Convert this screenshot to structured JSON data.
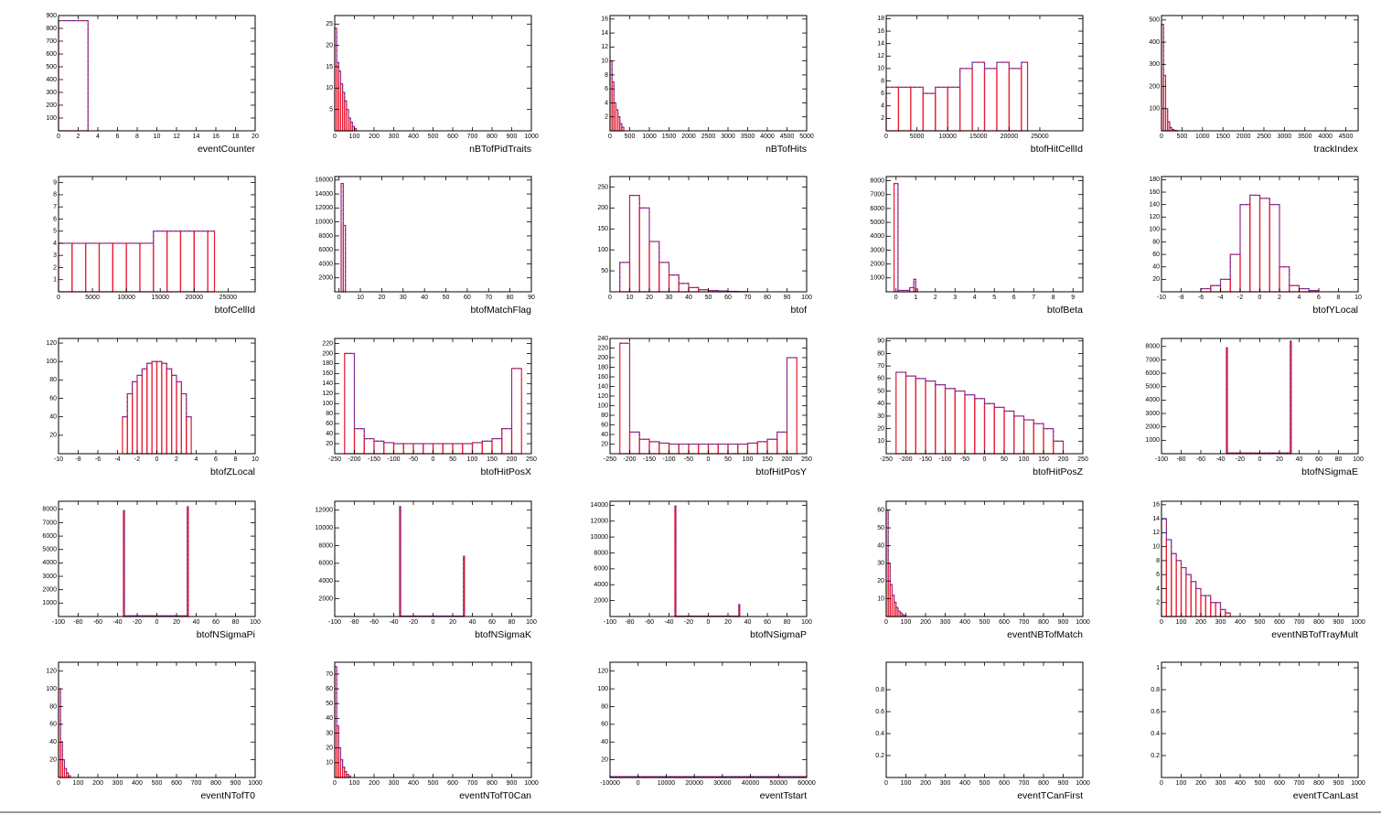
{
  "chart_data": [
    {
      "type": "histogram",
      "xlabel": "eventCounter",
      "color": "#e8182f",
      "xlim": [
        0,
        20
      ],
      "ylim": [
        0,
        900
      ],
      "xticks": [
        0,
        2,
        4,
        6,
        8,
        10,
        12,
        14,
        16,
        18,
        20
      ],
      "yticks": [
        100,
        200,
        300,
        400,
        500,
        600,
        700,
        800,
        900
      ],
      "bins": [
        0,
        3,
        20
      ],
      "values": [
        860,
        0
      ]
    },
    {
      "type": "histogram",
      "xlabel": "nBTofPidTraits",
      "color": "#e8182f",
      "xlim": [
        0,
        1000
      ],
      "ylim": [
        0,
        27
      ],
      "xticks": [
        0,
        100,
        200,
        300,
        400,
        500,
        600,
        700,
        800,
        900,
        1000
      ],
      "yticks": [
        5,
        10,
        15,
        20,
        25
      ],
      "bins": [
        0,
        10,
        20,
        30,
        40,
        50,
        60,
        70,
        80,
        90,
        100,
        110,
        120
      ],
      "values": [
        24,
        16,
        14,
        11,
        9,
        7,
        5,
        3,
        2,
        1,
        0.5,
        0
      ]
    },
    {
      "type": "histogram",
      "xlabel": "nBTofHits",
      "color": "#e8182f",
      "xlim": [
        0,
        5000
      ],
      "ylim": [
        0,
        16.5
      ],
      "xticks": [
        0,
        500,
        1000,
        1500,
        2000,
        2500,
        3000,
        3500,
        4000,
        4500,
        5000
      ],
      "yticks": [
        2,
        4,
        6,
        8,
        10,
        12,
        14,
        16
      ],
      "bins": [
        0,
        50,
        100,
        150,
        200,
        250,
        300,
        350
      ],
      "values": [
        10,
        7,
        4,
        3,
        2,
        1,
        0.5
      ]
    },
    {
      "type": "histogram",
      "xlabel": "btofHitCellId",
      "color": "#e8182f",
      "xlim": [
        0,
        32000
      ],
      "ylim": [
        0,
        18.5
      ],
      "xticks": [
        0,
        5000,
        10000,
        15000,
        20000,
        25000
      ],
      "yticks": [
        2,
        4,
        6,
        8,
        10,
        12,
        14,
        16,
        18
      ],
      "bins": [
        0,
        2000,
        4000,
        6000,
        8000,
        10000,
        12000,
        14000,
        16000,
        18000,
        20000,
        22000,
        23000
      ],
      "values": [
        7,
        7,
        7,
        6,
        7,
        7,
        10,
        11,
        10,
        11,
        10,
        11
      ]
    },
    {
      "type": "histogram",
      "xlabel": "trackIndex",
      "color": "#e8182f",
      "xlim": [
        0,
        4800
      ],
      "ylim": [
        0,
        520
      ],
      "xticks": [
        0,
        500,
        1000,
        1500,
        2000,
        2500,
        3000,
        3500,
        4000,
        4500
      ],
      "yticks": [
        100,
        200,
        300,
        400,
        500
      ],
      "bins": [
        0,
        50,
        100,
        150,
        200,
        250,
        300,
        350,
        400
      ],
      "values": [
        480,
        250,
        100,
        40,
        15,
        6,
        2,
        1
      ]
    },
    {
      "type": "histogram",
      "xlabel": "btofCellId",
      "color": "#e8182f",
      "xlim": [
        0,
        29000
      ],
      "ylim": [
        0,
        9.5
      ],
      "xticks": [
        0,
        5000,
        10000,
        15000,
        20000,
        25000
      ],
      "yticks": [
        1,
        2,
        3,
        4,
        5,
        6,
        7,
        8,
        9
      ],
      "bins": [
        0,
        2000,
        4000,
        6000,
        8000,
        10000,
        12000,
        14000,
        16000,
        18000,
        20000,
        22000,
        23000
      ],
      "values": [
        4,
        4,
        4,
        4,
        4,
        4,
        4,
        5,
        5,
        5,
        5,
        5
      ]
    },
    {
      "type": "histogram",
      "xlabel": "btofMatchFlag",
      "color": "#e8182f",
      "xlim": [
        -2,
        90
      ],
      "ylim": [
        0,
        16500
      ],
      "xticks": [
        0,
        10,
        20,
        30,
        40,
        50,
        60,
        70,
        80,
        90
      ],
      "yticks": [
        2000,
        4000,
        6000,
        8000,
        10000,
        12000,
        14000,
        16000
      ],
      "bins": [
        0,
        1,
        2,
        3,
        4
      ],
      "values": [
        0,
        15500,
        9500,
        0
      ]
    },
    {
      "type": "histogram",
      "xlabel": "btof",
      "color": "#e8182f",
      "xlim": [
        0,
        100
      ],
      "ylim": [
        0,
        275
      ],
      "xticks": [
        0,
        10,
        20,
        30,
        40,
        50,
        60,
        70,
        80,
        90,
        100
      ],
      "yticks": [
        50,
        100,
        150,
        200,
        250
      ],
      "bins": [
        0,
        5,
        10,
        15,
        20,
        25,
        30,
        35,
        40,
        45,
        50,
        55,
        60,
        65,
        70
      ],
      "values": [
        0,
        70,
        230,
        200,
        120,
        70,
        40,
        20,
        10,
        5,
        3,
        2,
        1,
        0.5
      ]
    },
    {
      "type": "histogram",
      "xlabel": "btofBeta",
      "color": "#e8182f",
      "xlim": [
        -0.5,
        9.5
      ],
      "ylim": [
        0,
        8300
      ],
      "xticks": [
        0,
        1,
        2,
        3,
        4,
        5,
        6,
        7,
        8,
        9
      ],
      "yticks": [
        1000,
        2000,
        3000,
        4000,
        5000,
        6000,
        7000,
        8000
      ],
      "bins": [
        -0.1,
        0.1,
        0.7,
        0.9,
        1.0,
        1.1
      ],
      "values": [
        7800,
        100,
        300,
        900,
        200
      ]
    },
    {
      "type": "histogram",
      "xlabel": "btofYLocal",
      "color": "#e8182f",
      "xlim": [
        -10,
        10
      ],
      "ylim": [
        0,
        185
      ],
      "xticks": [
        -10,
        -8,
        -6,
        -4,
        -2,
        0,
        2,
        4,
        6,
        8,
        10
      ],
      "yticks": [
        20,
        40,
        60,
        80,
        100,
        120,
        140,
        160,
        180
      ],
      "bins": [
        -6,
        -5,
        -4,
        -3,
        -2,
        -1,
        0,
        1,
        2,
        3,
        4,
        5,
        6
      ],
      "values": [
        5,
        10,
        20,
        60,
        140,
        155,
        150,
        140,
        40,
        10,
        5,
        2
      ]
    },
    {
      "type": "histogram",
      "xlabel": "btofZLocal",
      "color": "#e8182f",
      "xlim": [
        -10,
        10
      ],
      "ylim": [
        0,
        125
      ],
      "xticks": [
        -10,
        -8,
        -6,
        -4,
        -2,
        0,
        2,
        4,
        6,
        8,
        10
      ],
      "yticks": [
        20,
        40,
        60,
        80,
        100,
        120
      ],
      "bins": [
        -3.5,
        -3,
        -2.5,
        -2,
        -1.5,
        -1,
        -0.5,
        0,
        0.5,
        1,
        1.5,
        2,
        2.5,
        3,
        3.5
      ],
      "values": [
        40,
        65,
        78,
        85,
        92,
        98,
        100,
        100,
        98,
        92,
        85,
        78,
        65,
        40
      ]
    },
    {
      "type": "histogram",
      "xlabel": "btofHitPosX",
      "color": "#e8182f",
      "xlim": [
        -250,
        250
      ],
      "ylim": [
        0,
        230
      ],
      "xticks": [
        -250,
        -200,
        -150,
        -100,
        -50,
        0,
        50,
        100,
        150,
        200,
        250
      ],
      "yticks": [
        20,
        40,
        60,
        80,
        100,
        120,
        140,
        160,
        180,
        200,
        220
      ],
      "bins": [
        -225,
        -200,
        -175,
        -150,
        -125,
        -100,
        -75,
        -50,
        -25,
        0,
        25,
        50,
        75,
        100,
        125,
        150,
        175,
        200,
        225
      ],
      "values": [
        200,
        50,
        30,
        25,
        22,
        20,
        20,
        20,
        20,
        20,
        20,
        20,
        20,
        22,
        25,
        30,
        50,
        170
      ]
    },
    {
      "type": "histogram",
      "xlabel": "btofHitPosY",
      "color": "#e8182f",
      "xlim": [
        -250,
        250
      ],
      "ylim": [
        0,
        240
      ],
      "xticks": [
        -250,
        -200,
        -150,
        -100,
        -50,
        0,
        50,
        100,
        150,
        200,
        250
      ],
      "yticks": [
        20,
        40,
        60,
        80,
        100,
        120,
        140,
        160,
        180,
        200,
        220,
        240
      ],
      "bins": [
        -225,
        -200,
        -175,
        -150,
        -125,
        -100,
        -75,
        -50,
        -25,
        0,
        25,
        50,
        75,
        100,
        125,
        150,
        175,
        200,
        225
      ],
      "values": [
        230,
        45,
        30,
        25,
        22,
        20,
        20,
        20,
        20,
        20,
        20,
        20,
        20,
        22,
        25,
        30,
        45,
        200
      ]
    },
    {
      "type": "histogram",
      "xlabel": "btofHitPosZ",
      "color": "#e8182f",
      "xlim": [
        -250,
        250
      ],
      "ylim": [
        0,
        92
      ],
      "xticks": [
        -250,
        -200,
        -150,
        -100,
        -50,
        0,
        50,
        100,
        150,
        200,
        250
      ],
      "yticks": [
        10,
        20,
        30,
        40,
        50,
        60,
        70,
        80,
        90
      ],
      "bins": [
        -225,
        -200,
        -175,
        -150,
        -125,
        -100,
        -75,
        -50,
        -25,
        0,
        25,
        50,
        75,
        100,
        125,
        150,
        175,
        200
      ],
      "values": [
        65,
        62,
        60,
        58,
        55,
        52,
        50,
        47,
        44,
        40,
        37,
        34,
        30,
        27,
        24,
        20,
        10
      ]
    },
    {
      "type": "histogram",
      "xlabel": "btofNSigmaE",
      "color": "#e8182f",
      "xlim": [
        -100,
        100
      ],
      "ylim": [
        0,
        8600
      ],
      "xticks": [
        -100,
        -80,
        -60,
        -40,
        -20,
        0,
        20,
        40,
        60,
        80,
        100
      ],
      "yticks": [
        1000,
        2000,
        3000,
        4000,
        5000,
        6000,
        7000,
        8000
      ],
      "bins": [
        -34,
        -33,
        31,
        32
      ],
      "values": [
        7900,
        50,
        8400
      ]
    },
    {
      "type": "histogram",
      "xlabel": "btofNSigmaPi",
      "color": "#e8182f",
      "xlim": [
        -100,
        100
      ],
      "ylim": [
        0,
        8600
      ],
      "xticks": [
        -100,
        -80,
        -60,
        -40,
        -20,
        0,
        20,
        40,
        60,
        80,
        100
      ],
      "yticks": [
        1000,
        2000,
        3000,
        4000,
        5000,
        6000,
        7000,
        8000
      ],
      "bins": [
        -34,
        -33,
        31,
        32
      ],
      "values": [
        7900,
        50,
        8200
      ]
    },
    {
      "type": "histogram",
      "xlabel": "btofNSigmaK",
      "color": "#e8182f",
      "xlim": [
        -100,
        100
      ],
      "ylim": [
        0,
        13000
      ],
      "xticks": [
        -100,
        -80,
        -60,
        -40,
        -20,
        0,
        20,
        40,
        60,
        80,
        100
      ],
      "yticks": [
        2000,
        4000,
        6000,
        8000,
        10000,
        12000
      ],
      "bins": [
        -34,
        -33,
        31,
        32
      ],
      "values": [
        12400,
        50,
        6800
      ]
    },
    {
      "type": "histogram",
      "xlabel": "btofNSigmaP",
      "color": "#e8182f",
      "xlim": [
        -100,
        100
      ],
      "ylim": [
        0,
        14500
      ],
      "xticks": [
        -100,
        -80,
        -60,
        -40,
        -20,
        0,
        20,
        40,
        60,
        80,
        100
      ],
      "yticks": [
        2000,
        4000,
        6000,
        8000,
        10000,
        12000,
        14000
      ],
      "bins": [
        -34,
        -33,
        31,
        32
      ],
      "values": [
        13900,
        50,
        1500
      ]
    },
    {
      "type": "histogram",
      "xlabel": "eventNBTofMatch",
      "color": "#e8182f",
      "xlim": [
        0,
        1000
      ],
      "ylim": [
        0,
        65
      ],
      "xticks": [
        0,
        100,
        200,
        300,
        400,
        500,
        600,
        700,
        800,
        900,
        1000
      ],
      "yticks": [
        10,
        20,
        30,
        40,
        50,
        60
      ],
      "bins": [
        0,
        10,
        20,
        30,
        40,
        50,
        60,
        70,
        80,
        90,
        100
      ],
      "values": [
        60,
        30,
        18,
        12,
        8,
        5,
        3,
        2,
        1,
        0.5
      ]
    },
    {
      "type": "histogram",
      "xlabel": "eventNBTofTrayMult",
      "color": "#e8182f",
      "xlim": [
        0,
        1000
      ],
      "ylim": [
        0,
        16.5
      ],
      "xticks": [
        0,
        100,
        200,
        300,
        400,
        500,
        600,
        700,
        800,
        900,
        1000
      ],
      "yticks": [
        2,
        4,
        6,
        8,
        10,
        12,
        14,
        16
      ],
      "bins": [
        0,
        25,
        50,
        75,
        100,
        125,
        150,
        175,
        200,
        225,
        250,
        275,
        300,
        325,
        350
      ],
      "values": [
        14,
        11,
        9,
        8,
        7,
        6,
        5,
        4,
        3,
        3,
        2,
        2,
        1,
        0.5
      ]
    },
    {
      "type": "histogram",
      "xlabel": "eventNTofT0",
      "color": "#e8182f",
      "xlim": [
        0,
        1000
      ],
      "ylim": [
        0,
        130
      ],
      "xticks": [
        0,
        100,
        200,
        300,
        400,
        500,
        600,
        700,
        800,
        900,
        1000
      ],
      "yticks": [
        20,
        40,
        60,
        80,
        100,
        120
      ],
      "bins": [
        0,
        10,
        20,
        30,
        40,
        50,
        60
      ],
      "values": [
        100,
        40,
        20,
        10,
        5,
        2
      ]
    },
    {
      "type": "histogram",
      "xlabel": "eventNTofT0Can",
      "color": "#e8182f",
      "xlim": [
        0,
        1000
      ],
      "ylim": [
        0,
        78
      ],
      "xticks": [
        0,
        100,
        200,
        300,
        400,
        500,
        600,
        700,
        800,
        900,
        1000
      ],
      "yticks": [
        10,
        20,
        30,
        40,
        50,
        60,
        70
      ],
      "bins": [
        0,
        10,
        20,
        30,
        40,
        50,
        60,
        70,
        80
      ],
      "values": [
        75,
        35,
        20,
        12,
        7,
        4,
        2,
        1
      ]
    },
    {
      "type": "histogram",
      "xlabel": "eventTstart",
      "color": "#e8182f",
      "xlim": [
        -10000,
        60000
      ],
      "ylim": [
        0,
        130
      ],
      "xticks": [
        -10000,
        0,
        10000,
        20000,
        30000,
        40000,
        50000,
        60000
      ],
      "yticks": [
        20,
        40,
        60,
        80,
        100,
        120
      ],
      "bins": [
        -10000,
        0,
        10000,
        20000,
        30000,
        40000,
        50000,
        60000
      ],
      "values": [
        1,
        1,
        1,
        1,
        1,
        1,
        1
      ]
    },
    {
      "type": "histogram",
      "xlabel": "eventTCanFirst",
      "color": "#e8182f",
      "xlim": [
        0,
        1000
      ],
      "ylim": [
        0,
        1.05
      ],
      "xticks": [
        0,
        100,
        200,
        300,
        400,
        500,
        600,
        700,
        800,
        900,
        1000
      ],
      "yticks": [
        0.2,
        0.4,
        0.6,
        0.8
      ],
      "bins": [
        0,
        1000
      ],
      "values": [
        0
      ]
    },
    {
      "type": "histogram",
      "xlabel": "eventTCanLast",
      "color": "#e8182f",
      "xlim": [
        0,
        1000
      ],
      "ylim": [
        0,
        1.05
      ],
      "xticks": [
        0,
        100,
        200,
        300,
        400,
        500,
        600,
        700,
        800,
        900,
        1000
      ],
      "yticks": [
        0.2,
        0.4,
        0.6,
        0.8,
        1
      ],
      "bins": [
        0,
        1000
      ],
      "values": [
        0
      ]
    }
  ]
}
